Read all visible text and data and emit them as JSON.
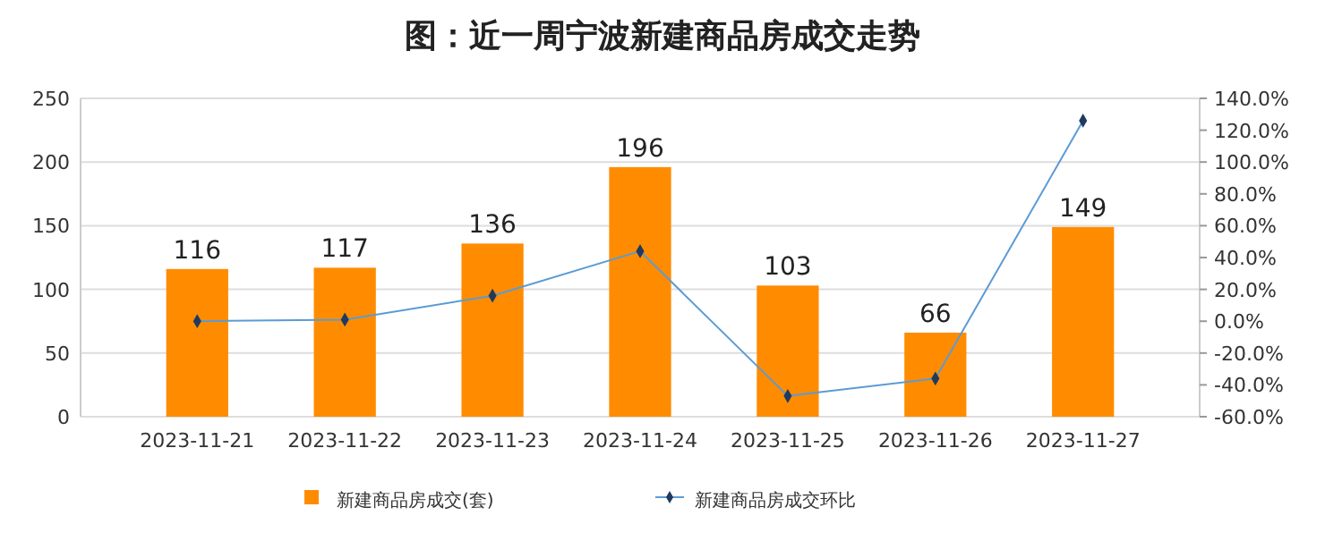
{
  "chart_data": {
    "type": "bar",
    "title": "图：近一周宁波新建商品房成交走势",
    "categories": [
      "2023-11-21",
      "2023-11-22",
      "2023-11-23",
      "2023-11-24",
      "2023-11-25",
      "2023-11-26",
      "2023-11-27"
    ],
    "series": [
      {
        "name": "新建商品房成交(套)",
        "color": "#ff8c00",
        "values": [
          116,
          117,
          136,
          196,
          103,
          66,
          149
        ],
        "value_labels": [
          "116",
          "117",
          "136",
          "196",
          "103",
          "66",
          "149"
        ]
      },
      {
        "name": "新建商品房成交环比",
        "type": "line",
        "axis": "y2",
        "color": "#5b9bd5",
        "marker": "diamond",
        "values": [
          0,
          1,
          16,
          44,
          -47,
          -36,
          126
        ]
      }
    ],
    "ylim": [
      0,
      250
    ],
    "yticks": [
      0,
      50,
      100,
      150,
      200,
      250
    ],
    "y2lim": [
      -60,
      140
    ],
    "y2ticks": [
      {
        "value": -60,
        "label": "-60.0%"
      },
      {
        "value": -40,
        "label": "-40.0%"
      },
      {
        "value": -20,
        "label": "-20.0%"
      },
      {
        "value": 0,
        "label": "0.0%"
      },
      {
        "value": 20,
        "label": "20.0%"
      },
      {
        "value": 40,
        "label": "40.0%"
      },
      {
        "value": 60,
        "label": "60.0%"
      },
      {
        "value": 80,
        "label": "80.0%"
      },
      {
        "value": 100,
        "label": "100.0%"
      },
      {
        "value": 120,
        "label": "120.0%"
      },
      {
        "value": 140,
        "label": "140.0%"
      }
    ],
    "grid": "y",
    "legend": "bottom"
  }
}
